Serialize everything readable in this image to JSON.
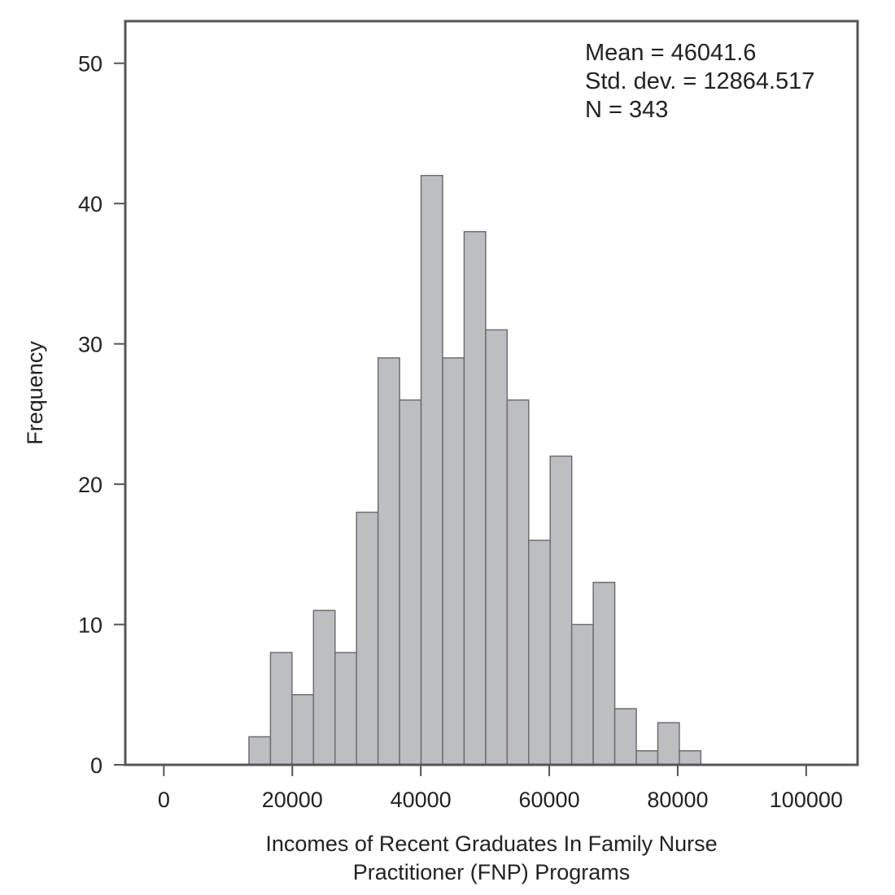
{
  "chart_data": {
    "type": "bar",
    "subtype": "histogram",
    "title": "",
    "xlabel_lines": [
      "Incomes of Recent Graduates In Family Nurse",
      "Practitioner (FNP) Programs"
    ],
    "ylabel": "Frequency",
    "x_ticks": [
      0,
      20000,
      40000,
      60000,
      80000,
      100000
    ],
    "y_ticks": [
      0,
      10,
      20,
      30,
      40,
      50
    ],
    "xlim": [
      -6000,
      108000
    ],
    "ylim": [
      0,
      53
    ],
    "bin_width": 3350,
    "bins": [
      {
        "start": 13250,
        "count": 2
      },
      {
        "start": 16600,
        "count": 8
      },
      {
        "start": 19950,
        "count": 5
      },
      {
        "start": 23300,
        "count": 11
      },
      {
        "start": 26650,
        "count": 8
      },
      {
        "start": 30000,
        "count": 18
      },
      {
        "start": 33350,
        "count": 29
      },
      {
        "start": 36700,
        "count": 26
      },
      {
        "start": 40050,
        "count": 42
      },
      {
        "start": 43400,
        "count": 29
      },
      {
        "start": 46750,
        "count": 38
      },
      {
        "start": 50100,
        "count": 31
      },
      {
        "start": 53450,
        "count": 26
      },
      {
        "start": 56800,
        "count": 16
      },
      {
        "start": 60150,
        "count": 22
      },
      {
        "start": 63500,
        "count": 10
      },
      {
        "start": 66850,
        "count": 13
      },
      {
        "start": 70200,
        "count": 4
      },
      {
        "start": 73550,
        "count": 1
      },
      {
        "start": 76900,
        "count": 3
      },
      {
        "start": 80250,
        "count": 1
      }
    ],
    "stats": {
      "mean_line": "Mean = 46041.6",
      "std_line": "Std. dev. = 12864.517",
      "n_line": "N = 343"
    },
    "grid": false,
    "legend": "none",
    "bar_color": "#bdbec2",
    "bar_edge_color": "#6e6e6e"
  }
}
